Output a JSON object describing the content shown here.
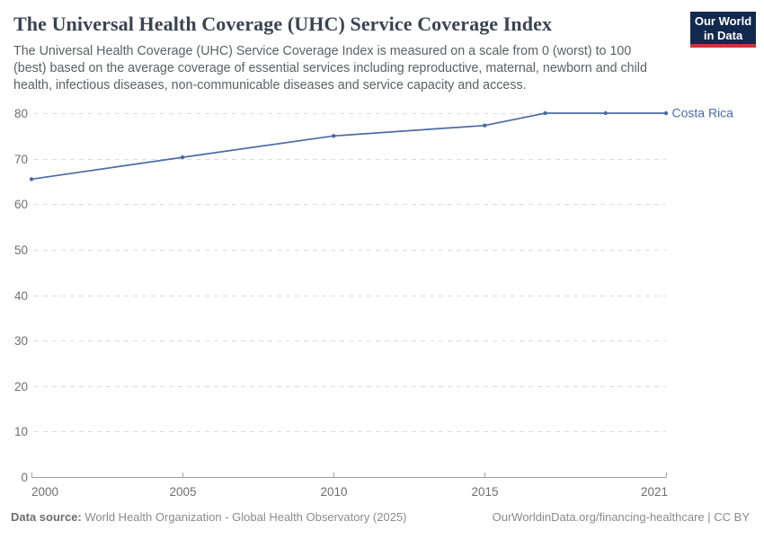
{
  "header": {
    "title": "The Universal Health Coverage (UHC) Service Coverage Index",
    "subtitle": "The Universal Health Coverage (UHC) Service Coverage Index is measured on a scale from 0 (worst) to 100 (best) based on the average coverage of essential services including reproductive, maternal, newborn and child health, infectious diseases, non-communicable diseases and service capacity and access."
  },
  "logo": {
    "line1": "Our World",
    "line2": "in Data",
    "bg_color": "#12294e",
    "accent_color": "#d13239"
  },
  "chart_data": {
    "type": "line",
    "title": "The Universal Health Coverage (UHC) Service Coverage Index",
    "series": [
      {
        "name": "Costa Rica",
        "color": "#4c6ba5",
        "x": [
          2000,
          2005,
          2010,
          2015,
          2017,
          2019,
          2021
        ],
        "values": [
          65.5,
          70.3,
          75,
          77.3,
          80,
          80,
          80
        ]
      }
    ],
    "xlim": [
      2000,
      2021
    ],
    "ylim": [
      0,
      80
    ],
    "yticks": [
      0,
      10,
      20,
      30,
      40,
      50,
      60,
      70,
      80
    ],
    "xticks": [
      2000,
      2005,
      2010,
      2015,
      2021
    ],
    "xlabel": "",
    "ylabel": "",
    "grid": "horizontal-dashed",
    "legend_position": "line-end-label",
    "styles": {
      "grid_color": "#dcdcdc",
      "axis_color": "#a1a1a1",
      "tick_label_color": "#6f6f6f"
    }
  },
  "footer": {
    "source_label": "Data source:",
    "source_text": " World Health Organization - Global Health Observatory (2025)",
    "citation_text": "OurWorldinData.org/financing-healthcare | CC BY"
  }
}
